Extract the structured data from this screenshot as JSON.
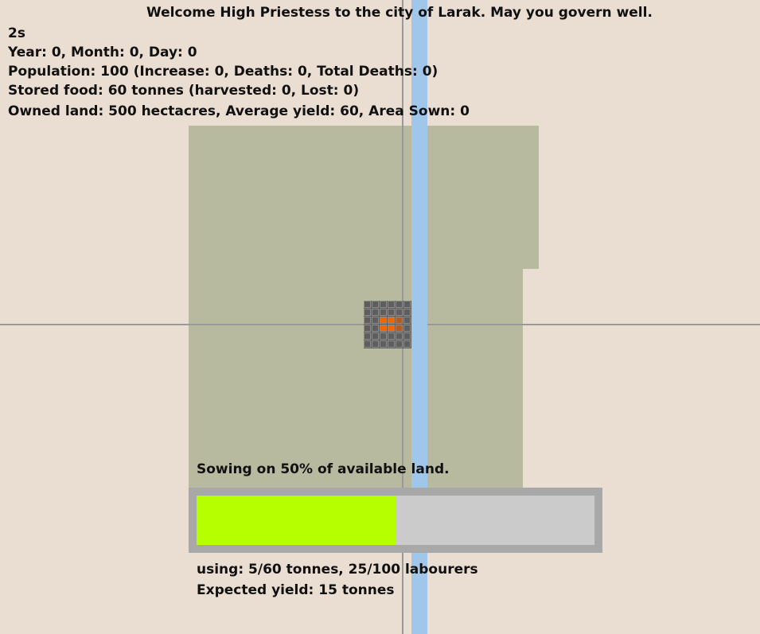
{
  "header": {
    "welcome": "Welcome High Priestess to the city of Larak. May you govern well."
  },
  "stats": {
    "timer": "2s",
    "date": "Year: 0, Month: 0, Day: 0",
    "population": "Population: 100 (Increase: 0, Deaths: 0, Total Deaths: 0)",
    "food": "Stored food: 60 tonnes (harvested:  0, Lost: 0)",
    "land": "Owned land: 500 hectacres, Average yield: 60, Area Sown: 0"
  },
  "sowing": {
    "label": "Sowing on 50% of available land.",
    "fraction": 0.5,
    "fill_color": "#b5ff00",
    "usage": "using: 5/60 tonnes, 25/100 labourers",
    "expected": "Expected yield: 15 tonnes"
  },
  "colors": {
    "background": "#eaddd2",
    "land": "#b8baa0",
    "river": "#a0c6ea",
    "city": "#5e5e5e",
    "fire": "#ee6600"
  }
}
